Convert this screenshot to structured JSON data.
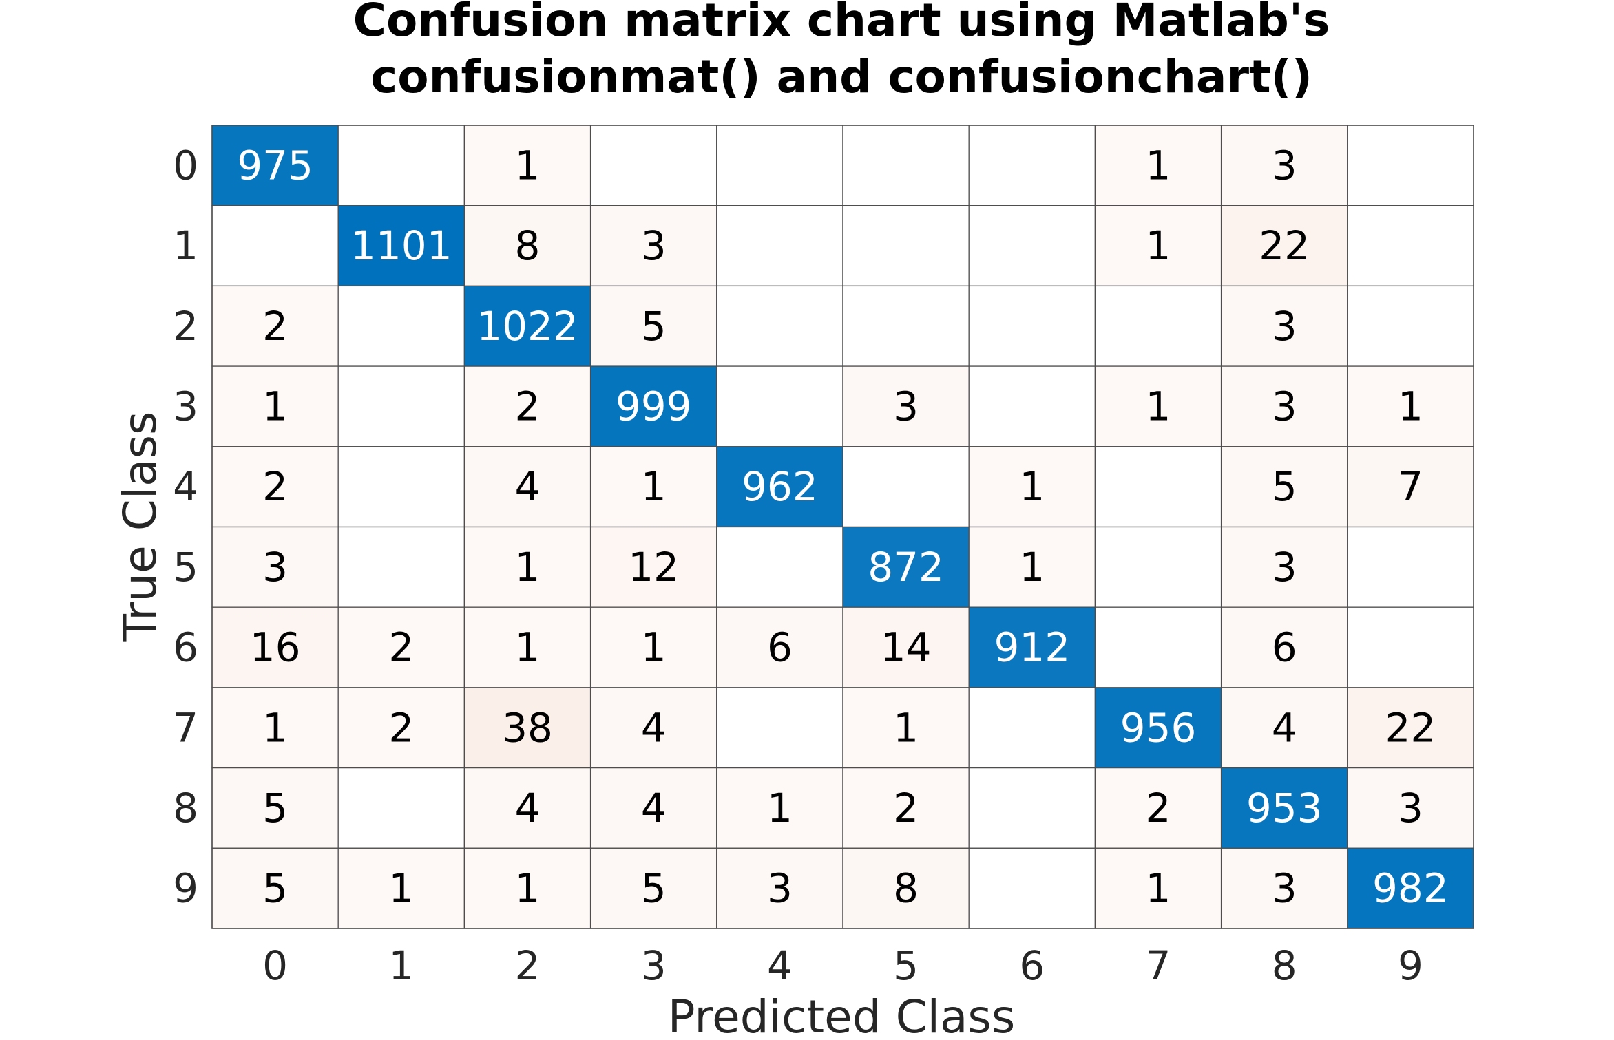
{
  "chart_data": {
    "type": "heatmap",
    "title_lines": [
      "Confusion matrix chart using Matlab's",
      "confusionmat() and confusionchart()"
    ],
    "xlabel": "Predicted Class",
    "ylabel": "True Class",
    "x_categories": [
      "0",
      "1",
      "2",
      "3",
      "4",
      "5",
      "6",
      "7",
      "8",
      "9"
    ],
    "y_categories": [
      "0",
      "1",
      "2",
      "3",
      "4",
      "5",
      "6",
      "7",
      "8",
      "9"
    ],
    "matrix": [
      [
        975,
        0,
        1,
        0,
        0,
        0,
        0,
        1,
        3,
        0
      ],
      [
        0,
        1101,
        8,
        3,
        0,
        0,
        0,
        1,
        22,
        0
      ],
      [
        2,
        0,
        1022,
        5,
        0,
        0,
        0,
        0,
        3,
        0
      ],
      [
        1,
        0,
        2,
        999,
        0,
        3,
        0,
        1,
        3,
        1
      ],
      [
        2,
        0,
        4,
        1,
        962,
        0,
        1,
        0,
        5,
        7
      ],
      [
        3,
        0,
        1,
        12,
        0,
        872,
        1,
        0,
        3,
        0
      ],
      [
        16,
        2,
        1,
        1,
        6,
        14,
        912,
        0,
        6,
        0
      ],
      [
        1,
        2,
        38,
        4,
        0,
        1,
        0,
        956,
        4,
        22
      ],
      [
        5,
        0,
        4,
        4,
        1,
        2,
        0,
        2,
        953,
        3
      ],
      [
        5,
        1,
        1,
        5,
        3,
        8,
        0,
        1,
        3,
        982
      ]
    ],
    "zero_cells_blank": true,
    "colors": {
      "diagonal_max": "#0072bd",
      "diagonal_min": "#ffffff",
      "off_diagonal_max": "#d95319",
      "off_diagonal_min": "#ffffff",
      "cell_border": "#4d4d4d",
      "text_dark": "#000000",
      "text_light": "#ffffff"
    }
  }
}
